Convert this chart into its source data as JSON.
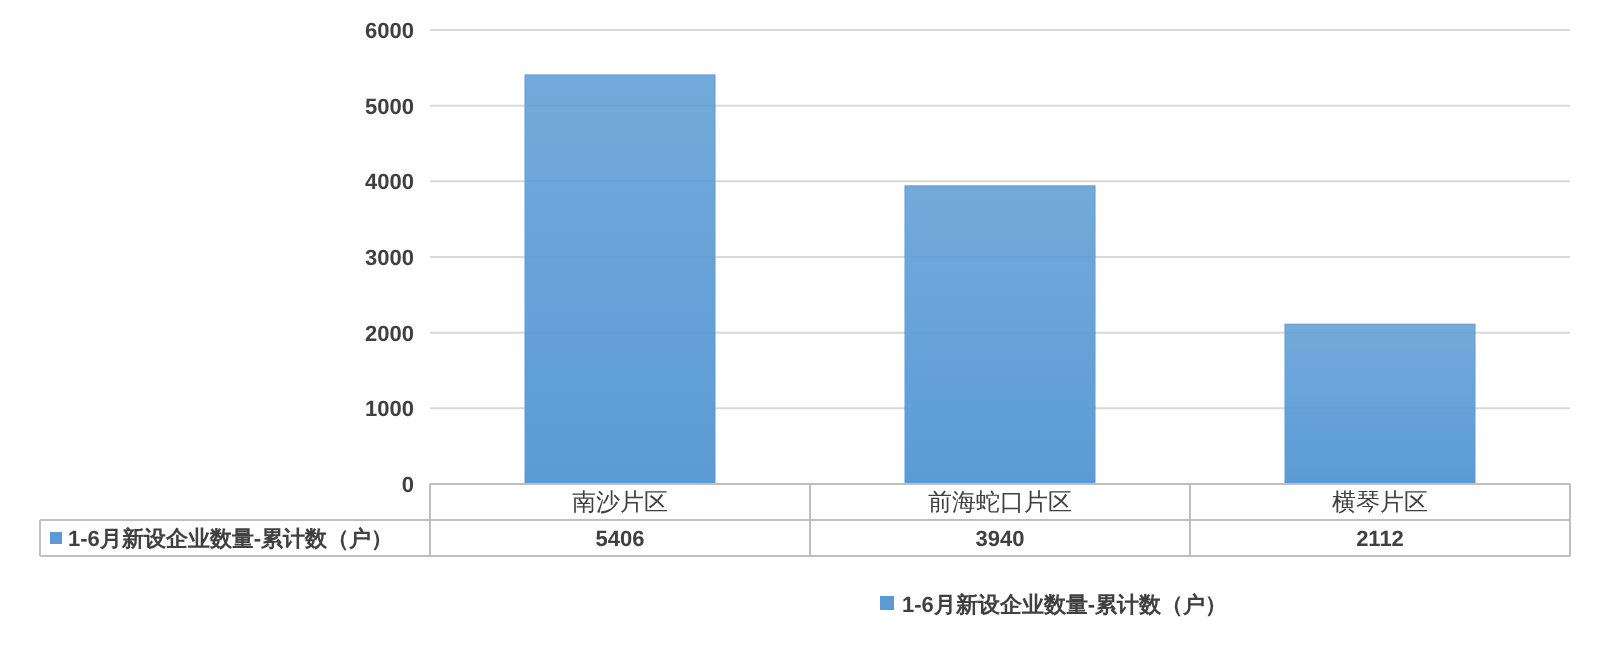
{
  "chart_data": {
    "type": "bar",
    "categories": [
      "南沙片区",
      "前海蛇口片区",
      "横琴片区"
    ],
    "series": [
      {
        "name": "1-6月新设企业数量-累计数（户）",
        "color": "#5b9bd5",
        "values": [
          5406,
          3940,
          2112
        ]
      }
    ],
    "ylim": [
      0,
      6000
    ],
    "yticks": [
      0,
      1000,
      2000,
      3000,
      4000,
      5000,
      6000
    ],
    "grid": "y",
    "legend": "bottom",
    "data_labels": true
  }
}
